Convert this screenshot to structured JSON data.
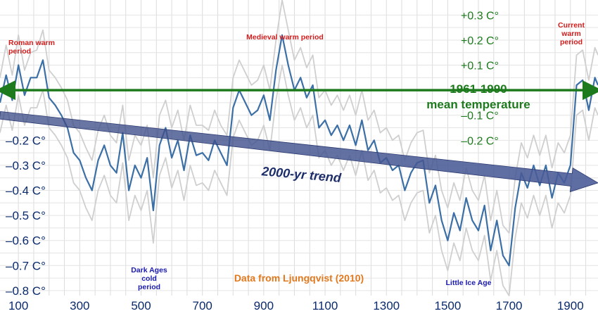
{
  "chart_data": {
    "type": "line",
    "source": "Data from Ljungqvist (2010)",
    "x_ticks": [
      "100",
      "300",
      "500",
      "700",
      "900",
      "1100",
      "1300",
      "1500",
      "1700",
      "1900"
    ],
    "xlim": [
      40,
      1990
    ],
    "ylim": [
      -0.82,
      0.36
    ],
    "y_ticks_left": [
      "-0.2 C°",
      "-0.3 C°",
      "-0.4 C°",
      "-0.5 C°",
      "-0.6 C°",
      "-0.7 C°",
      "-0.8 C°"
    ],
    "y_ticks_left_values": [
      -0.2,
      -0.3,
      -0.4,
      -0.5,
      -0.6,
      -0.7,
      -0.8
    ],
    "y_ticks_right": [
      "+0.3 C°",
      "+0.2 C°",
      "+0.1 C°",
      "–0.1 C°",
      "–0.2 C°"
    ],
    "y_ticks_right_values": [
      0.3,
      0.2,
      0.1,
      -0.1,
      -0.2
    ],
    "reference_line": {
      "value": 0.0,
      "label_line1": "1961-1990",
      "label_line2": "mean temperature",
      "color": "#1d7a1d"
    },
    "trend": {
      "label": "2000-yr trend",
      "start": [
        40,
        -0.1
      ],
      "end": [
        1990,
        -0.37
      ],
      "color": "#3a4a85"
    },
    "grid": true,
    "annotations": [
      {
        "line1": "Roman warm",
        "line2": "period",
        "color": "#d21c1c"
      },
      {
        "line1": "Medieval warm period",
        "color": "#d21c1c"
      },
      {
        "line1": "Current",
        "line2": "warm",
        "line3": "period",
        "color": "#d21c1c"
      },
      {
        "line1": "Dark Ages",
        "line2": "cold",
        "line3": "period",
        "color": "#1b1bb0"
      },
      {
        "line1": "Little Ice Age",
        "color": "#1b1bb0"
      }
    ],
    "series": [
      {
        "color": "#3b6fa6",
        "x": [
          40,
          60,
          80,
          100,
          120,
          140,
          160,
          180,
          200,
          220,
          240,
          260,
          280,
          300,
          320,
          340,
          360,
          380,
          400,
          420,
          440,
          460,
          480,
          500,
          520,
          540,
          560,
          580,
          600,
          620,
          640,
          660,
          680,
          700,
          720,
          740,
          760,
          780,
          800,
          820,
          840,
          860,
          880,
          900,
          920,
          940,
          960,
          980,
          1000,
          1020,
          1040,
          1060,
          1080,
          1100,
          1120,
          1140,
          1160,
          1180,
          1200,
          1220,
          1240,
          1260,
          1280,
          1300,
          1320,
          1340,
          1360,
          1380,
          1400,
          1420,
          1440,
          1460,
          1480,
          1500,
          1520,
          1540,
          1560,
          1580,
          1600,
          1620,
          1640,
          1660,
          1680,
          1700,
          1720,
          1740,
          1760,
          1780,
          1800,
          1820,
          1840,
          1860,
          1880,
          1900,
          1920,
          1940,
          1960,
          1980,
          1990
        ],
        "values": [
          -0.05,
          0.06,
          -0.04,
          0.1,
          -0.02,
          0.05,
          0.05,
          0.12,
          -0.03,
          -0.06,
          -0.1,
          -0.15,
          -0.25,
          -0.28,
          -0.35,
          -0.4,
          -0.28,
          -0.22,
          -0.3,
          -0.33,
          -0.17,
          -0.4,
          -0.3,
          -0.35,
          -0.27,
          -0.48,
          -0.22,
          -0.15,
          -0.27,
          -0.2,
          -0.32,
          -0.18,
          -0.26,
          -0.25,
          -0.28,
          -0.2,
          -0.25,
          -0.3,
          -0.07,
          0.0,
          -0.05,
          -0.1,
          -0.08,
          -0.02,
          -0.12,
          0.08,
          0.22,
          0.1,
          0.0,
          0.05,
          -0.03,
          0.02,
          -0.15,
          -0.12,
          -0.18,
          -0.14,
          -0.2,
          -0.14,
          -0.22,
          -0.12,
          -0.24,
          -0.2,
          -0.29,
          -0.27,
          -0.32,
          -0.3,
          -0.4,
          -0.33,
          -0.29,
          -0.28,
          -0.45,
          -0.38,
          -0.52,
          -0.6,
          -0.49,
          -0.56,
          -0.43,
          -0.52,
          -0.56,
          -0.46,
          -0.64,
          -0.52,
          -0.66,
          -0.7,
          -0.47,
          -0.33,
          -0.39,
          -0.3,
          -0.38,
          -0.3,
          -0.43,
          -0.33,
          -0.37,
          -0.3,
          0.02,
          0.04,
          -0.08,
          0.05,
          0.02
        ]
      },
      {
        "color": "#cfcfcf",
        "x": [
          40,
          60,
          80,
          100,
          120,
          140,
          160,
          180,
          200,
          220,
          240,
          260,
          280,
          300,
          320,
          340,
          360,
          380,
          400,
          420,
          440,
          460,
          480,
          500,
          520,
          540,
          560,
          580,
          600,
          620,
          640,
          660,
          680,
          700,
          720,
          740,
          760,
          780,
          800,
          820,
          840,
          860,
          880,
          900,
          920,
          940,
          960,
          980,
          1000,
          1020,
          1040,
          1060,
          1080,
          1100,
          1120,
          1140,
          1160,
          1180,
          1200,
          1220,
          1240,
          1260,
          1280,
          1300,
          1320,
          1340,
          1360,
          1380,
          1400,
          1420,
          1440,
          1460,
          1480,
          1500,
          1520,
          1540,
          1560,
          1580,
          1600,
          1620,
          1640,
          1660,
          1680,
          1700,
          1720,
          1740,
          1760,
          1780,
          1800,
          1820,
          1840,
          1860,
          1880,
          1900,
          1920,
          1940,
          1960,
          1980,
          1990
        ],
        "values": [
          0.05,
          0.18,
          0.06,
          0.22,
          0.08,
          0.15,
          0.16,
          0.24,
          0.08,
          0.05,
          0.01,
          -0.04,
          -0.14,
          -0.17,
          -0.23,
          -0.28,
          -0.16,
          -0.1,
          -0.18,
          -0.21,
          -0.06,
          -0.28,
          -0.18,
          -0.22,
          -0.14,
          -0.35,
          -0.1,
          -0.04,
          -0.15,
          -0.08,
          -0.2,
          -0.06,
          -0.14,
          -0.14,
          -0.16,
          -0.08,
          -0.14,
          -0.18,
          0.05,
          0.12,
          0.07,
          0.02,
          0.04,
          0.1,
          0.0,
          0.2,
          0.36,
          0.24,
          0.12,
          0.17,
          0.09,
          0.14,
          -0.03,
          0.0,
          -0.06,
          -0.02,
          -0.08,
          -0.02,
          -0.1,
          0.0,
          -0.12,
          -0.08,
          -0.17,
          -0.15,
          -0.2,
          -0.18,
          -0.28,
          -0.21,
          -0.17,
          -0.16,
          -0.33,
          -0.26,
          -0.4,
          -0.47,
          -0.37,
          -0.44,
          -0.31,
          -0.4,
          -0.44,
          -0.34,
          -0.52,
          -0.4,
          -0.54,
          -0.57,
          -0.35,
          -0.21,
          -0.27,
          -0.18,
          -0.26,
          -0.18,
          -0.31,
          -0.21,
          -0.25,
          -0.18,
          0.14,
          0.16,
          0.04,
          0.17,
          0.14
        ]
      },
      {
        "color": "#cfcfcf",
        "x": [
          40,
          60,
          80,
          100,
          120,
          140,
          160,
          180,
          200,
          220,
          240,
          260,
          280,
          300,
          320,
          340,
          360,
          380,
          400,
          420,
          440,
          460,
          480,
          500,
          520,
          540,
          560,
          580,
          600,
          620,
          640,
          660,
          680,
          700,
          720,
          740,
          760,
          780,
          800,
          820,
          840,
          860,
          880,
          900,
          920,
          940,
          960,
          980,
          1000,
          1020,
          1040,
          1060,
          1080,
          1100,
          1120,
          1140,
          1160,
          1180,
          1200,
          1220,
          1240,
          1260,
          1280,
          1300,
          1320,
          1340,
          1360,
          1380,
          1400,
          1420,
          1440,
          1460,
          1480,
          1500,
          1520,
          1540,
          1560,
          1580,
          1600,
          1620,
          1640,
          1660,
          1680,
          1700,
          1720,
          1740,
          1760,
          1780,
          1800,
          1820,
          1840,
          1860,
          1880,
          1900,
          1920,
          1940,
          1960,
          1980,
          1990
        ],
        "values": [
          -0.17,
          -0.06,
          -0.16,
          -0.02,
          -0.14,
          -0.07,
          -0.07,
          0.0,
          -0.15,
          -0.18,
          -0.22,
          -0.27,
          -0.37,
          -0.4,
          -0.47,
          -0.52,
          -0.4,
          -0.34,
          -0.42,
          -0.45,
          -0.29,
          -0.52,
          -0.42,
          -0.48,
          -0.4,
          -0.61,
          -0.34,
          -0.27,
          -0.39,
          -0.32,
          -0.44,
          -0.3,
          -0.38,
          -0.37,
          -0.4,
          -0.32,
          -0.37,
          -0.42,
          -0.19,
          -0.12,
          -0.17,
          -0.22,
          -0.2,
          -0.14,
          -0.24,
          -0.04,
          0.1,
          -0.02,
          -0.12,
          -0.07,
          -0.15,
          -0.1,
          -0.27,
          -0.24,
          -0.3,
          -0.26,
          -0.32,
          -0.26,
          -0.34,
          -0.24,
          -0.36,
          -0.32,
          -0.41,
          -0.39,
          -0.44,
          -0.42,
          -0.52,
          -0.45,
          -0.41,
          -0.4,
          -0.57,
          -0.5,
          -0.64,
          -0.72,
          -0.61,
          -0.68,
          -0.55,
          -0.64,
          -0.68,
          -0.58,
          -0.76,
          -0.64,
          -0.78,
          -0.82,
          -0.59,
          -0.45,
          -0.51,
          -0.42,
          -0.5,
          -0.42,
          -0.55,
          -0.45,
          -0.49,
          -0.42,
          -0.1,
          -0.08,
          -0.2,
          -0.07,
          -0.1
        ]
      }
    ]
  }
}
